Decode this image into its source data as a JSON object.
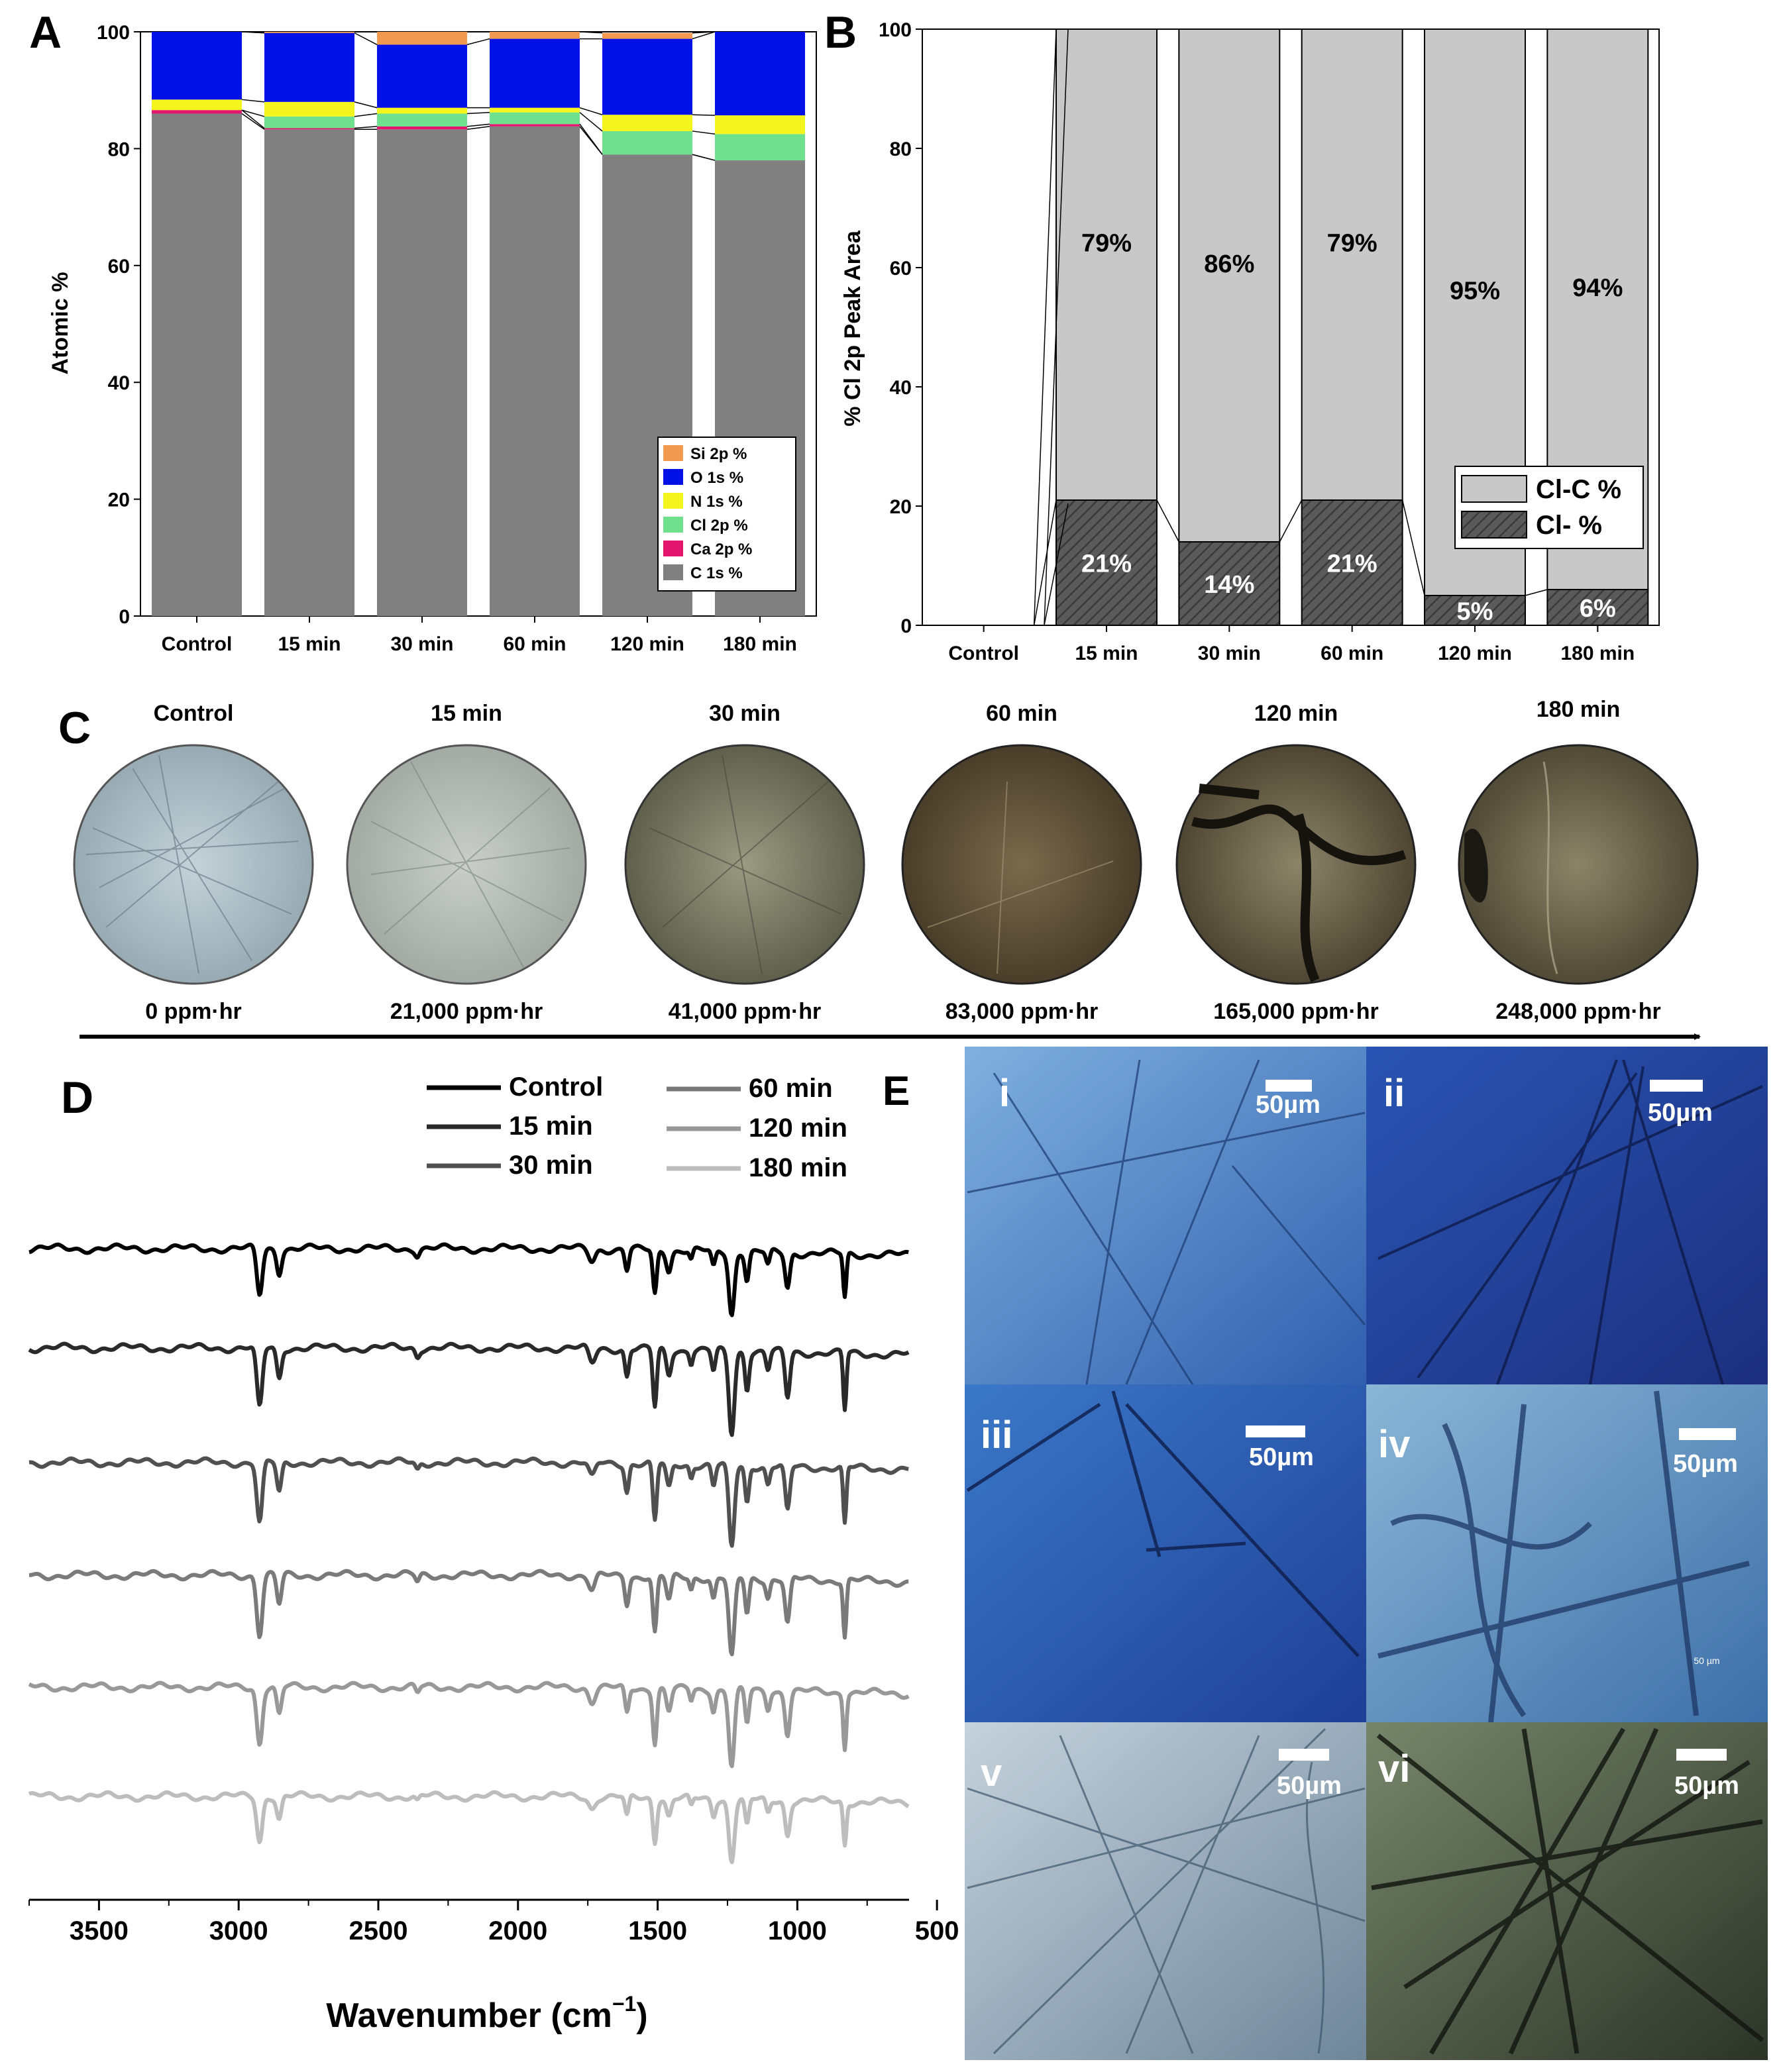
{
  "panels": {
    "A": "A",
    "B": "B",
    "C": "C",
    "D": "D",
    "E": "E"
  },
  "colors": {
    "si": "#f29a52",
    "o": "#0010e6",
    "n": "#f5f51e",
    "cl": "#6ee08e",
    "ca": "#e3166f",
    "c": "#808080",
    "clc": "#c8c8c8",
    "clminus": "#5a5a5a"
  },
  "chart_data": [
    {
      "id": "A",
      "type": "bar",
      "stacked": true,
      "title": "",
      "xlabel": "",
      "ylabel": "Atomic %",
      "ylim": [
        0,
        100
      ],
      "yticks": [
        "0",
        "20",
        "40",
        "60",
        "80",
        "100"
      ],
      "categories": [
        "Control",
        "15 min",
        "30 min",
        "60 min",
        "120 min",
        "180 min"
      ],
      "legend_position": "bottom-right",
      "series": [
        {
          "name": "C 1s %",
          "key": "c",
          "values": [
            86,
            83.3,
            83.3,
            83.8,
            79,
            78
          ]
        },
        {
          "name": "Ca 2p %",
          "key": "ca",
          "values": [
            0.6,
            0.2,
            0.5,
            0.4,
            0,
            0
          ]
        },
        {
          "name": "Cl 2p %",
          "key": "cl",
          "values": [
            0,
            2,
            2.2,
            2,
            4,
            4.5
          ]
        },
        {
          "name": "N 1s %",
          "key": "n",
          "values": [
            1.8,
            2.5,
            1,
            0.8,
            2.8,
            3.2
          ]
        },
        {
          "name": "O 1s %",
          "key": "o",
          "values": [
            11.6,
            11.8,
            10.8,
            11.8,
            13,
            14.3
          ]
        },
        {
          "name": "Si 2p %",
          "key": "si",
          "values": [
            0,
            0.2,
            2.2,
            1.2,
            1,
            0
          ]
        }
      ],
      "legend_order": [
        "Si 2p %",
        "O 1s %",
        "N 1s %",
        "Cl 2p %",
        "Ca 2p %",
        "C 1s %"
      ]
    },
    {
      "id": "B",
      "type": "bar",
      "stacked": true,
      "title": "",
      "xlabel": "",
      "ylabel": "% Cl 2p Peak Area",
      "ylim": [
        0,
        100
      ],
      "yticks": [
        "0",
        "20",
        "40",
        "60",
        "80",
        "100"
      ],
      "categories": [
        "Control",
        "15 min",
        "30 min",
        "60  min",
        "120 min",
        "180 min"
      ],
      "legend_position": "bottom-right",
      "series": [
        {
          "name": "Cl- %",
          "key": "clminus",
          "values": [
            0,
            21,
            14,
            21,
            5,
            6
          ],
          "labels": [
            "",
            "21%",
            "14%",
            "21%",
            "5%",
            "6%"
          ]
        },
        {
          "name": "Cl-C %",
          "key": "clc",
          "values": [
            0,
            79,
            86,
            79,
            95,
            94
          ],
          "labels": [
            "",
            "79%",
            "86%",
            "79%",
            "95%",
            "94%"
          ]
        }
      ],
      "legend_order": [
        "Cl-C %",
        "Cl- %"
      ]
    },
    {
      "id": "D",
      "type": "line",
      "title": "",
      "xlabel": "Wavenumber (cm",
      "xlabel_sup": "−1",
      "xlabel_end": ")",
      "ylabel": "",
      "xlim": [
        3750,
        600
      ],
      "xticks": [
        "3500",
        "3000",
        "2500",
        "2000",
        "1500",
        "1000",
        "500"
      ],
      "legend_position": "top-right",
      "series": [
        {
          "name": "Control",
          "color": "#000000"
        },
        {
          "name": "15 min",
          "color": "#2a2a2a"
        },
        {
          "name": "30 min",
          "color": "#505050"
        },
        {
          "name": "60 min",
          "color": "#7a7a7a"
        },
        {
          "name": "120 min",
          "color": "#989898"
        },
        {
          "name": "180 min",
          "color": "#bdbdbd"
        }
      ]
    }
  ],
  "panel_c": {
    "titles": [
      "Control",
      "15 min",
      "30 min",
      "60 min",
      "120 min",
      "180 min"
    ],
    "doses": [
      "0 ppm·hr",
      "21,000 ppm·hr",
      "41,000 ppm·hr",
      "83,000 ppm·hr",
      "165,000 ppm·hr",
      "248,000 ppm·hr"
    ]
  },
  "panel_e": {
    "labels": [
      "i",
      "ii",
      "iii",
      "iv",
      "v",
      "vi"
    ],
    "scale": "50µm",
    "small_scale": "50 µm"
  }
}
